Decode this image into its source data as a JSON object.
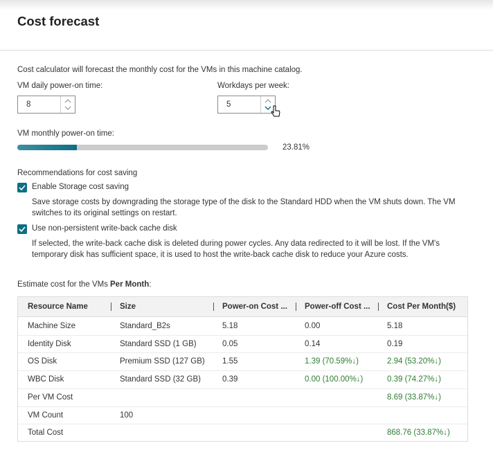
{
  "header": {
    "title": "Cost forecast"
  },
  "description": "Cost calculator will forecast the monthly cost for the VMs in this machine catalog.",
  "inputs": [
    {
      "label": "VM daily power-on time:",
      "value": 8
    },
    {
      "label": "Workdays per week:",
      "value": 5
    }
  ],
  "progress": {
    "label": "VM monthly power-on time:",
    "value": 23.81,
    "value_label": "23.81%"
  },
  "recommendations": {
    "title": "Recommendations for cost saving",
    "options": [
      {
        "label": "Enable Storage cost saving",
        "checked": true,
        "description": "Save storage costs by downgrading the storage type of the disk to the Standard HDD when the VM shuts down. The VM switches to its original settings on restart."
      },
      {
        "label": "Use non-persistent write-back cache disk",
        "checked": true,
        "description": "If selected, the write-back cache disk is deleted during power cycles. Any data redirected to it will be lost. If the VM's temporary disk has sufficient space, it is used to host the write-back cache disk to reduce your Azure costs."
      }
    ]
  },
  "estimate": {
    "label": [
      "Estimate cost for the VMs",
      "Per Month",
      ":"
    ],
    "table": {
      "columns": [
        "Resource Name",
        "Size",
        "Power-on Cost ...",
        "Power-off Cost ...",
        "Cost Per Month($)"
      ],
      "rows": [
        [
          "Machine Size",
          "Standard_B2s",
          "5.18",
          "0.00",
          "5.18"
        ],
        [
          "Identity Disk",
          "Standard SSD (1 GB)",
          "0.05",
          "0.14",
          "0.19"
        ],
        [
          "OS Disk",
          "Premium SSD (127 GB)",
          "1.55",
          "1.39 (70.59%↓)",
          "2.94 (53.20%↓)"
        ],
        [
          "WBC Disk",
          "Standard SSD (32 GB)",
          "0.39",
          "0.00 (100.00%↓)",
          "0.39 (74.27%↓)"
        ],
        [
          "Per VM Cost",
          null,
          null,
          null,
          "8.69 (33.87%↓)"
        ],
        [
          "VM Count",
          "100",
          null,
          null,
          null
        ],
        [
          "Total Cost",
          null,
          null,
          null,
          "868.76 (33.87%↓)"
        ]
      ]
    }
  }
}
